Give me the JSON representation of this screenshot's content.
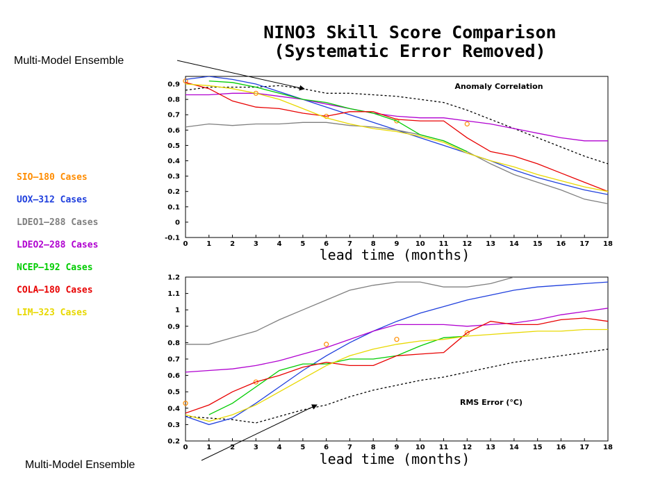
{
  "title_line1": "NINO3 Skill Score Comparison",
  "title_line2": "(Systematic Error Removed)",
  "annotations": {
    "top": "Multi-Model Ensemble",
    "bottom": "Multi-Model Ensemble"
  },
  "legend": [
    {
      "label": "SIO—180 Cases",
      "color": "#ff8c00"
    },
    {
      "label": "UOX—312 Cases",
      "color": "#1f3fdd"
    },
    {
      "label": "LDEO1—288 Cases",
      "color": "#7f7f7f"
    },
    {
      "label": "LDEO2—288 Cases",
      "color": "#b000d0"
    },
    {
      "label": "NCEP—192 Cases",
      "color": "#00cc00"
    },
    {
      "label": "COLA—180 Cases",
      "color": "#e80000"
    },
    {
      "label": "LIM—323 Cases",
      "color": "#e8d800"
    }
  ],
  "chart_data": [
    {
      "type": "line",
      "label": "Anomaly Correlation",
      "xlabel": "lead time (months)",
      "xlim": [
        0,
        18
      ],
      "ylim": [
        -0.1,
        0.95
      ],
      "xticks": [
        0,
        1,
        2,
        3,
        4,
        5,
        6,
        7,
        8,
        9,
        10,
        11,
        12,
        13,
        14,
        15,
        16,
        17,
        18
      ],
      "yticks": [
        -0.1,
        0,
        0.1,
        0.2,
        0.3,
        0.4,
        0.5,
        0.6,
        0.7,
        0.8,
        0.9
      ],
      "ytick_labels": [
        "-0.1",
        "0",
        "0.1",
        "0.2",
        "0.3",
        "0.4",
        "0.5",
        "0.6",
        "0.7",
        "0.8",
        "0.9"
      ],
      "series": [
        {
          "name": "Multi-Model Ensemble",
          "color": "#000000",
          "style": "dashed",
          "x": [
            0,
            1,
            2,
            3,
            4,
            5,
            6,
            7,
            8,
            9,
            10,
            11,
            12,
            13,
            14,
            15,
            16,
            17,
            18
          ],
          "y": [
            0.86,
            0.88,
            0.88,
            0.88,
            0.89,
            0.87,
            0.84,
            0.84,
            0.83,
            0.82,
            0.8,
            0.78,
            0.73,
            0.67,
            0.61,
            0.55,
            0.49,
            0.43,
            0.38
          ]
        },
        {
          "name": "SIO—180 Cases",
          "color": "#ff8c00",
          "style": "markers",
          "x": [
            0,
            3,
            6,
            9,
            12
          ],
          "y": [
            0.92,
            0.84,
            0.69,
            0.66,
            0.64
          ]
        },
        {
          "name": "UOX—312 Cases",
          "color": "#1f3fdd",
          "style": "solid",
          "x": [
            0,
            1,
            2,
            3,
            4,
            5,
            6,
            7,
            8,
            9,
            10,
            11,
            12,
            13,
            14,
            15,
            16,
            17,
            18
          ],
          "y": [
            0.93,
            0.95,
            0.93,
            0.9,
            0.85,
            0.8,
            0.75,
            0.7,
            0.65,
            0.6,
            0.55,
            0.5,
            0.45,
            0.4,
            0.34,
            0.29,
            0.25,
            0.21,
            0.18
          ]
        },
        {
          "name": "LDEO1—288 Cases",
          "color": "#7f7f7f",
          "style": "solid",
          "x": [
            0,
            1,
            2,
            3,
            4,
            5,
            6,
            7,
            8,
            9,
            10,
            11,
            12,
            13,
            14,
            15,
            16,
            17,
            18
          ],
          "y": [
            0.62,
            0.64,
            0.63,
            0.64,
            0.64,
            0.65,
            0.65,
            0.63,
            0.62,
            0.6,
            0.57,
            0.53,
            0.46,
            0.38,
            0.31,
            0.26,
            0.21,
            0.15,
            0.12
          ]
        },
        {
          "name": "LDEO2—288 Cases",
          "color": "#b000d0",
          "style": "solid",
          "x": [
            0,
            1,
            2,
            3,
            4,
            5,
            6,
            7,
            8,
            9,
            10,
            11,
            12,
            13,
            14,
            15,
            16,
            17,
            18
          ],
          "y": [
            0.83,
            0.83,
            0.84,
            0.84,
            0.82,
            0.8,
            0.77,
            0.74,
            0.71,
            0.69,
            0.68,
            0.68,
            0.66,
            0.64,
            0.61,
            0.58,
            0.55,
            0.53,
            0.53
          ]
        },
        {
          "name": "NCEP—192 Cases",
          "color": "#00cc00",
          "style": "solid",
          "x": [
            1,
            2,
            3,
            4,
            5,
            6,
            7,
            8,
            9,
            10,
            11,
            12
          ],
          "y": [
            0.92,
            0.91,
            0.88,
            0.84,
            0.8,
            0.78,
            0.74,
            0.71,
            0.66,
            0.57,
            0.53,
            0.46
          ]
        },
        {
          "name": "COLA—180 Cases",
          "color": "#e80000",
          "style": "solid",
          "x": [
            0,
            1,
            2,
            3,
            4,
            5,
            6,
            7,
            8,
            9,
            10,
            11,
            12,
            13,
            14,
            15,
            16,
            17,
            18
          ],
          "y": [
            0.91,
            0.87,
            0.79,
            0.75,
            0.74,
            0.71,
            0.69,
            0.72,
            0.72,
            0.67,
            0.66,
            0.66,
            0.55,
            0.46,
            0.43,
            0.38,
            0.32,
            0.26,
            0.2
          ]
        },
        {
          "name": "LIM—323 Cases",
          "color": "#e8d800",
          "style": "solid",
          "x": [
            0,
            1,
            2,
            3,
            4,
            5,
            6,
            7,
            8,
            9,
            10,
            11,
            12,
            13,
            14,
            15,
            16,
            17,
            18
          ],
          "y": [
            0.9,
            0.89,
            0.87,
            0.84,
            0.8,
            0.74,
            0.68,
            0.64,
            0.61,
            0.59,
            0.56,
            0.52,
            0.45,
            0.4,
            0.36,
            0.31,
            0.27,
            0.23,
            0.2
          ]
        }
      ]
    },
    {
      "type": "line",
      "label": "RMS Error (°C)",
      "xlabel": "lead time (months)",
      "xlim": [
        0,
        18
      ],
      "ylim": [
        0.2,
        1.2
      ],
      "xticks": [
        0,
        1,
        2,
        3,
        4,
        5,
        6,
        7,
        8,
        9,
        10,
        11,
        12,
        13,
        14,
        15,
        16,
        17,
        18
      ],
      "yticks": [
        0.2,
        0.3,
        0.4,
        0.5,
        0.6,
        0.7,
        0.8,
        0.9,
        1,
        1.1,
        1.2
      ],
      "ytick_labels": [
        "0.2",
        "0.3",
        "0.4",
        "0.5",
        "0.6",
        "0.7",
        "0.8",
        "0.9",
        "1",
        "1.1",
        "1.2"
      ],
      "series": [
        {
          "name": "Multi-Model Ensemble",
          "color": "#000000",
          "style": "dashed",
          "x": [
            0,
            1,
            2,
            3,
            4,
            5,
            6,
            7,
            8,
            9,
            10,
            11,
            12,
            13,
            14,
            15,
            16,
            17,
            18
          ],
          "y": [
            0.35,
            0.34,
            0.33,
            0.31,
            0.35,
            0.39,
            0.42,
            0.47,
            0.51,
            0.54,
            0.57,
            0.59,
            0.62,
            0.65,
            0.68,
            0.7,
            0.72,
            0.74,
            0.76
          ]
        },
        {
          "name": "SIO—180 Cases",
          "color": "#ff8c00",
          "style": "markers",
          "x": [
            0,
            3,
            6,
            9,
            12
          ],
          "y": [
            0.43,
            0.56,
            0.79,
            0.82,
            0.86
          ]
        },
        {
          "name": "UOX—312 Cases",
          "color": "#1f3fdd",
          "style": "solid",
          "x": [
            0,
            1,
            2,
            3,
            4,
            5,
            6,
            7,
            8,
            9,
            10,
            11,
            12,
            13,
            14,
            15,
            16,
            17,
            18
          ],
          "y": [
            0.35,
            0.3,
            0.34,
            0.43,
            0.53,
            0.63,
            0.72,
            0.8,
            0.87,
            0.93,
            0.98,
            1.02,
            1.06,
            1.09,
            1.12,
            1.14,
            1.15,
            1.16,
            1.17
          ]
        },
        {
          "name": "LDEO1—288 Cases",
          "color": "#7f7f7f",
          "style": "solid",
          "x": [
            0,
            1,
            2,
            3,
            4,
            5,
            6,
            7,
            8,
            9,
            10,
            11,
            12,
            13,
            14
          ],
          "y": [
            0.79,
            0.79,
            0.83,
            0.87,
            0.94,
            1.0,
            1.06,
            1.12,
            1.15,
            1.17,
            1.17,
            1.14,
            1.14,
            1.16,
            1.2
          ]
        },
        {
          "name": "LDEO2—288 Cases",
          "color": "#b000d0",
          "style": "solid",
          "x": [
            0,
            1,
            2,
            3,
            4,
            5,
            6,
            7,
            8,
            9,
            10,
            11,
            12,
            13,
            14,
            15,
            16,
            17,
            18
          ],
          "y": [
            0.62,
            0.63,
            0.64,
            0.66,
            0.69,
            0.73,
            0.77,
            0.82,
            0.87,
            0.91,
            0.91,
            0.91,
            0.9,
            0.91,
            0.92,
            0.94,
            0.97,
            0.99,
            1.01
          ]
        },
        {
          "name": "NCEP—192 Cases",
          "color": "#00cc00",
          "style": "solid",
          "x": [
            1,
            2,
            3,
            4,
            5,
            6,
            7,
            8,
            9,
            10,
            11,
            12
          ],
          "y": [
            0.36,
            0.43,
            0.53,
            0.63,
            0.67,
            0.67,
            0.7,
            0.7,
            0.72,
            0.78,
            0.83,
            0.84
          ]
        },
        {
          "name": "COLA—180 Cases",
          "color": "#e80000",
          "style": "solid",
          "x": [
            0,
            1,
            2,
            3,
            4,
            5,
            6,
            7,
            8,
            9,
            10,
            11,
            12,
            13,
            14,
            15,
            16,
            17,
            18
          ],
          "y": [
            0.37,
            0.42,
            0.5,
            0.56,
            0.6,
            0.65,
            0.68,
            0.66,
            0.66,
            0.72,
            0.73,
            0.74,
            0.86,
            0.93,
            0.91,
            0.91,
            0.94,
            0.95,
            0.93
          ]
        },
        {
          "name": "LIM—323 Cases",
          "color": "#e8d800",
          "style": "solid",
          "x": [
            0,
            1,
            2,
            3,
            4,
            5,
            6,
            7,
            8,
            9,
            10,
            11,
            12,
            13,
            14,
            15,
            16,
            17,
            18
          ],
          "y": [
            0.36,
            0.32,
            0.36,
            0.42,
            0.5,
            0.58,
            0.66,
            0.72,
            0.76,
            0.79,
            0.81,
            0.82,
            0.84,
            0.85,
            0.86,
            0.87,
            0.87,
            0.88,
            0.88
          ]
        }
      ]
    }
  ]
}
